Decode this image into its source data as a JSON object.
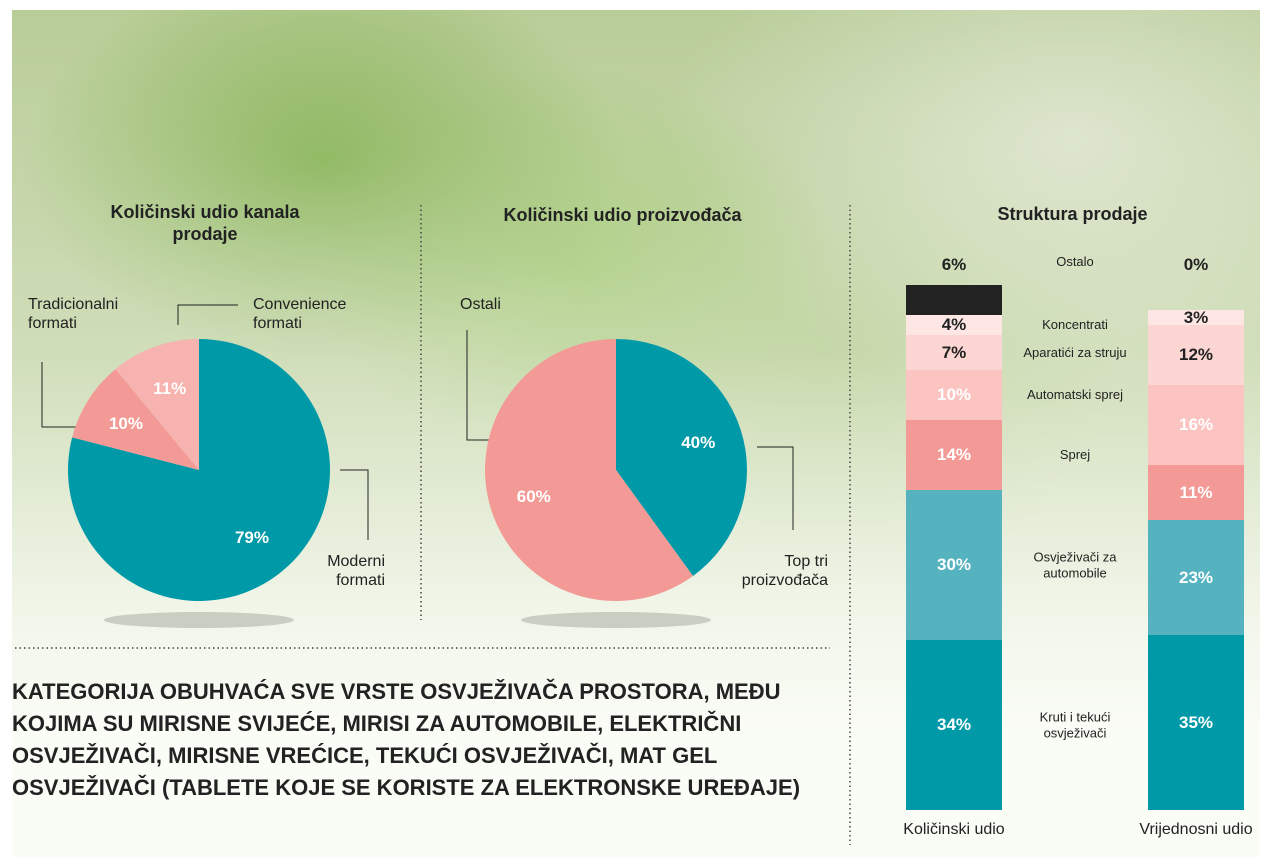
{
  "chart_data": [
    {
      "type": "pie",
      "title": "Količinski udio kanala prodaje",
      "categories": [
        "Moderni formati",
        "Tradicionalni formati",
        "Convenience formati"
      ],
      "values": [
        79,
        10,
        11
      ],
      "value_labels": [
        "79%",
        "10%",
        "11%"
      ],
      "colors": [
        "#0099a8",
        "#f39a96",
        "#f6b3af"
      ]
    },
    {
      "type": "pie",
      "title": "Količinski udio proizvođača",
      "categories": [
        "Top tri proizvođača",
        "Ostali"
      ],
      "values": [
        40,
        60
      ],
      "value_labels": [
        "40%",
        "60%"
      ],
      "colors": [
        "#0099a8",
        "#f39a96"
      ]
    },
    {
      "type": "bar",
      "stacked": true,
      "title": "Struktura prodaje",
      "categories": [
        "Količinski udio",
        "Vrijednosni udio"
      ],
      "series": [
        {
          "name": "Kruti i tekući osvježivači",
          "color": "#0099a8",
          "label_color": "#ffffff",
          "values": [
            34,
            35
          ],
          "value_labels": [
            "34%",
            "35%"
          ]
        },
        {
          "name": "Osvježivači za automobile",
          "color": "#55b3c0",
          "label_color": "#ffffff",
          "values": [
            30,
            23
          ],
          "value_labels": [
            "30%",
            "23%"
          ]
        },
        {
          "name": "Sprej",
          "color": "#f39a96",
          "label_color": "#ffffff",
          "values": [
            14,
            11
          ],
          "value_labels": [
            "14%",
            "11%"
          ]
        },
        {
          "name": "Automatski sprej",
          "color": "#fbc4c1",
          "label_color": "#ffffff",
          "values": [
            10,
            16
          ],
          "value_labels": [
            "10%",
            "16%"
          ]
        },
        {
          "name": "Aparatići za struju",
          "color": "#fcd6d3",
          "label_color": "#222222",
          "values": [
            7,
            12
          ],
          "value_labels": [
            "7%",
            "12%"
          ]
        },
        {
          "name": "Koncentrati",
          "color": "#fde6e4",
          "label_color": "#222222",
          "values": [
            4,
            3
          ],
          "value_labels": [
            "4%",
            "3%"
          ]
        },
        {
          "name": "Ostalo",
          "color": "#222222",
          "label_color": "#222222",
          "values": [
            6,
            0
          ],
          "value_labels": [
            "6%",
            "0%"
          ]
        }
      ]
    }
  ],
  "caption": "KATEGORIJA OBUHVAĆA SVE VRSTE OSVJEŽIVAČA PROSTORA, MEĐU KOJIMA SU MIRISNE SVIJEĆE, MIRISI ZA AUTOMOBILE, ELEKTRIČNI OSVJEŽIVAČI, MIRISNE VREĆICE, TEKUĆI OSVJEŽIVAČI, MAT GEL OSVJEŽIVAČI (TABLETE KOJE SE KORISTE ZA ELEKTRONSKE UREĐAJE)"
}
